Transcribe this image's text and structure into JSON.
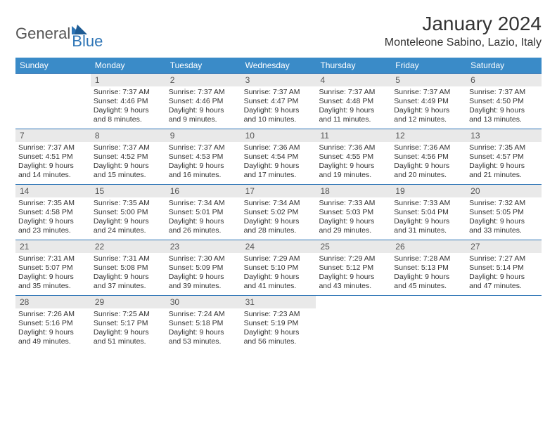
{
  "logo": {
    "part1": "General",
    "part2": "Blue"
  },
  "title": "January 2024",
  "location": "Monteleone Sabino, Lazio, Italy",
  "header_bg": "#3a8bc8",
  "header_fg": "#ffffff",
  "daynum_bg": "#e9e9e9",
  "week_border": "#2e75b6",
  "day_names": [
    "Sunday",
    "Monday",
    "Tuesday",
    "Wednesday",
    "Thursday",
    "Friday",
    "Saturday"
  ],
  "weeks": [
    [
      null,
      {
        "n": "1",
        "sr": "7:37 AM",
        "ss": "4:46 PM",
        "dl": "9 hours and 8 minutes."
      },
      {
        "n": "2",
        "sr": "7:37 AM",
        "ss": "4:46 PM",
        "dl": "9 hours and 9 minutes."
      },
      {
        "n": "3",
        "sr": "7:37 AM",
        "ss": "4:47 PM",
        "dl": "9 hours and 10 minutes."
      },
      {
        "n": "4",
        "sr": "7:37 AM",
        "ss": "4:48 PM",
        "dl": "9 hours and 11 minutes."
      },
      {
        "n": "5",
        "sr": "7:37 AM",
        "ss": "4:49 PM",
        "dl": "9 hours and 12 minutes."
      },
      {
        "n": "6",
        "sr": "7:37 AM",
        "ss": "4:50 PM",
        "dl": "9 hours and 13 minutes."
      }
    ],
    [
      {
        "n": "7",
        "sr": "7:37 AM",
        "ss": "4:51 PM",
        "dl": "9 hours and 14 minutes."
      },
      {
        "n": "8",
        "sr": "7:37 AM",
        "ss": "4:52 PM",
        "dl": "9 hours and 15 minutes."
      },
      {
        "n": "9",
        "sr": "7:37 AM",
        "ss": "4:53 PM",
        "dl": "9 hours and 16 minutes."
      },
      {
        "n": "10",
        "sr": "7:36 AM",
        "ss": "4:54 PM",
        "dl": "9 hours and 17 minutes."
      },
      {
        "n": "11",
        "sr": "7:36 AM",
        "ss": "4:55 PM",
        "dl": "9 hours and 19 minutes."
      },
      {
        "n": "12",
        "sr": "7:36 AM",
        "ss": "4:56 PM",
        "dl": "9 hours and 20 minutes."
      },
      {
        "n": "13",
        "sr": "7:35 AM",
        "ss": "4:57 PM",
        "dl": "9 hours and 21 minutes."
      }
    ],
    [
      {
        "n": "14",
        "sr": "7:35 AM",
        "ss": "4:58 PM",
        "dl": "9 hours and 23 minutes."
      },
      {
        "n": "15",
        "sr": "7:35 AM",
        "ss": "5:00 PM",
        "dl": "9 hours and 24 minutes."
      },
      {
        "n": "16",
        "sr": "7:34 AM",
        "ss": "5:01 PM",
        "dl": "9 hours and 26 minutes."
      },
      {
        "n": "17",
        "sr": "7:34 AM",
        "ss": "5:02 PM",
        "dl": "9 hours and 28 minutes."
      },
      {
        "n": "18",
        "sr": "7:33 AM",
        "ss": "5:03 PM",
        "dl": "9 hours and 29 minutes."
      },
      {
        "n": "19",
        "sr": "7:33 AM",
        "ss": "5:04 PM",
        "dl": "9 hours and 31 minutes."
      },
      {
        "n": "20",
        "sr": "7:32 AM",
        "ss": "5:05 PM",
        "dl": "9 hours and 33 minutes."
      }
    ],
    [
      {
        "n": "21",
        "sr": "7:31 AM",
        "ss": "5:07 PM",
        "dl": "9 hours and 35 minutes."
      },
      {
        "n": "22",
        "sr": "7:31 AM",
        "ss": "5:08 PM",
        "dl": "9 hours and 37 minutes."
      },
      {
        "n": "23",
        "sr": "7:30 AM",
        "ss": "5:09 PM",
        "dl": "9 hours and 39 minutes."
      },
      {
        "n": "24",
        "sr": "7:29 AM",
        "ss": "5:10 PM",
        "dl": "9 hours and 41 minutes."
      },
      {
        "n": "25",
        "sr": "7:29 AM",
        "ss": "5:12 PM",
        "dl": "9 hours and 43 minutes."
      },
      {
        "n": "26",
        "sr": "7:28 AM",
        "ss": "5:13 PM",
        "dl": "9 hours and 45 minutes."
      },
      {
        "n": "27",
        "sr": "7:27 AM",
        "ss": "5:14 PM",
        "dl": "9 hours and 47 minutes."
      }
    ],
    [
      {
        "n": "28",
        "sr": "7:26 AM",
        "ss": "5:16 PM",
        "dl": "9 hours and 49 minutes."
      },
      {
        "n": "29",
        "sr": "7:25 AM",
        "ss": "5:17 PM",
        "dl": "9 hours and 51 minutes."
      },
      {
        "n": "30",
        "sr": "7:24 AM",
        "ss": "5:18 PM",
        "dl": "9 hours and 53 minutes."
      },
      {
        "n": "31",
        "sr": "7:23 AM",
        "ss": "5:19 PM",
        "dl": "9 hours and 56 minutes."
      },
      null,
      null,
      null
    ]
  ],
  "labels": {
    "sunrise": "Sunrise: ",
    "sunset": "Sunset: ",
    "daylight": "Daylight: "
  }
}
